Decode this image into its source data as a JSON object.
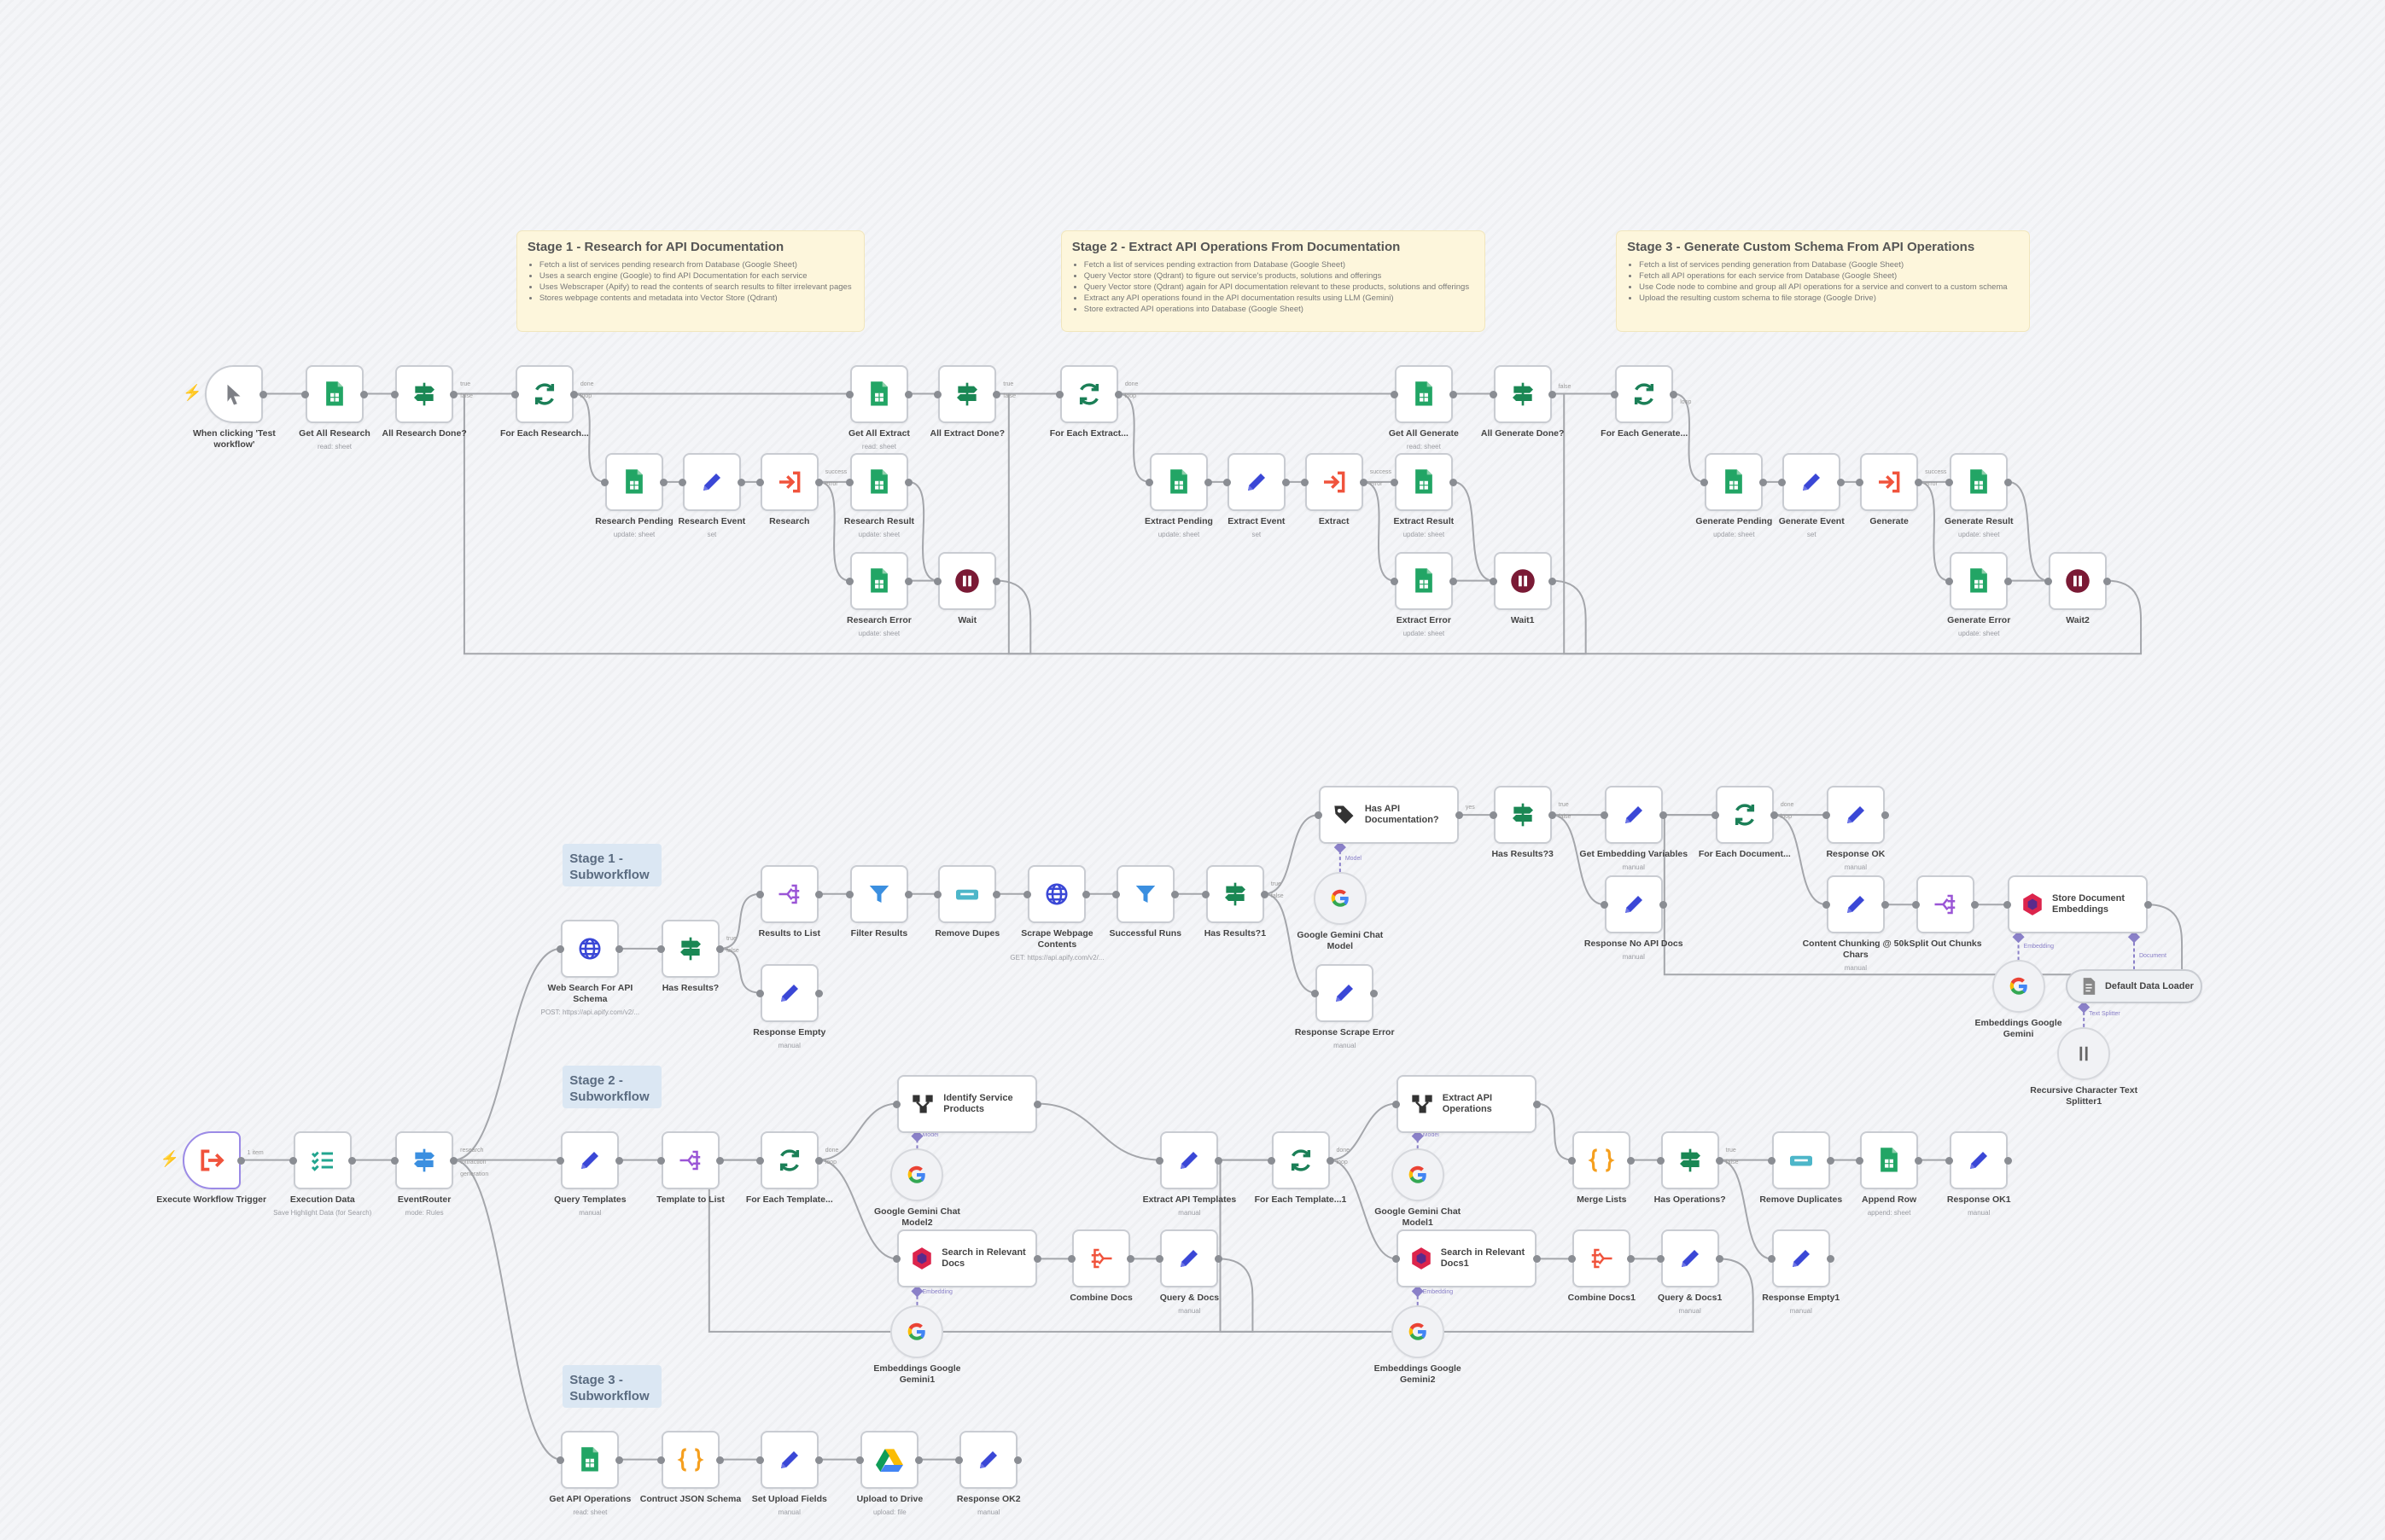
{
  "canvas": {
    "background": "#f4f5f8",
    "accent": "#ff6d5a"
  },
  "sticky_notes": [
    {
      "id": "s1",
      "title": "Stage 1 - Research for API Documentation",
      "bullets": [
        "Fetch a list of services pending research from Database (Google Sheet)",
        "Uses a search engine (Google) to find API Documentation for each service",
        "Uses Webscraper (Apify) to read the contents of search results to filter irrelevant pages",
        "Stores webpage contents and metadata into Vector Store (Qdrant)"
      ]
    },
    {
      "id": "s2",
      "title": "Stage 2 - Extract API Operations From Documentation",
      "bullets": [
        "Fetch a list of services pending extraction from Database (Google Sheet)",
        "Query Vector store (Qdrant) to figure out service's products, solutions and offerings",
        "Query Vector store (Qdrant) again for API documentation relevant to these products, solutions and offerings",
        "Extract any API operations found in the API documentation results using LLM (Gemini)",
        "Store extracted API operations into Database (Google Sheet)"
      ]
    },
    {
      "id": "s3",
      "title": "Stage 3 - Generate Custom Schema From API Operations",
      "bullets": [
        "Fetch a list of services pending generation from Database (Google Sheet)",
        "Fetch all API operations for each service from Database (Google Sheet)",
        "Use Code node to combine and group all API operations for a service and convert to a custom schema",
        "Upload the resulting custom schema to file storage (Google Drive)"
      ]
    }
  ],
  "subworkflow_labels": [
    {
      "id": "b1",
      "text": "Stage 1 - Subworkflow"
    },
    {
      "id": "b2",
      "text": "Stage 2 - Subworkflow"
    },
    {
      "id": "b3",
      "text": "Stage 3 - Subworkflow"
    }
  ],
  "nodes": [
    {
      "id": "t1",
      "label": "When clicking 'Test workflow'",
      "icon": "cursor-icon"
    },
    {
      "id": "gar",
      "label": "Get All Research",
      "subtitle": "read: sheet",
      "icon": "sheet-icon"
    },
    {
      "id": "ard",
      "label": "All Research Done?",
      "icon": "if-icon"
    },
    {
      "id": "fer",
      "label": "For Each Research...",
      "icon": "loop-icon"
    },
    {
      "id": "gae",
      "label": "Get All Extract",
      "subtitle": "read: sheet",
      "icon": "sheet-icon"
    },
    {
      "id": "aed",
      "label": "All Extract Done?",
      "icon": "if-icon"
    },
    {
      "id": "fee",
      "label": "For Each Extract...",
      "icon": "loop-icon"
    },
    {
      "id": "gag",
      "label": "Get All Generate",
      "subtitle": "read: sheet",
      "icon": "sheet-icon"
    },
    {
      "id": "agd",
      "label": "All Generate Done?",
      "icon": "if-icon"
    },
    {
      "id": "feg",
      "label": "For Each Generate...",
      "icon": "loop-icon"
    },
    {
      "id": "rp",
      "label": "Research Pending",
      "subtitle": "update: sheet",
      "icon": "sheet-icon"
    },
    {
      "id": "rev",
      "label": "Research Event",
      "subtitle": "set",
      "icon": "pencil-icon"
    },
    {
      "id": "r",
      "label": "Research",
      "icon": "execute-workflow-icon"
    },
    {
      "id": "rr",
      "label": "Research Result",
      "subtitle": "update: sheet",
      "icon": "sheet-icon"
    },
    {
      "id": "rer",
      "label": "Research Error",
      "subtitle": "update: sheet",
      "icon": "sheet-icon"
    },
    {
      "id": "w",
      "label": "Wait",
      "icon": "pause-icon"
    },
    {
      "id": "ep",
      "label": "Extract Pending",
      "subtitle": "update: sheet",
      "icon": "sheet-icon"
    },
    {
      "id": "eev",
      "label": "Extract Event",
      "subtitle": "set",
      "icon": "pencil-icon"
    },
    {
      "id": "e",
      "label": "Extract",
      "icon": "execute-workflow-icon"
    },
    {
      "id": "er2",
      "label": "Extract Result",
      "subtitle": "update: sheet",
      "icon": "sheet-icon"
    },
    {
      "id": "eer",
      "label": "Extract Error",
      "subtitle": "update: sheet",
      "icon": "sheet-icon"
    },
    {
      "id": "w1",
      "label": "Wait1",
      "icon": "pause-icon"
    },
    {
      "id": "gp",
      "label": "Generate Pending",
      "subtitle": "update: sheet",
      "icon": "sheet-icon"
    },
    {
      "id": "gev2",
      "label": "Generate Event",
      "subtitle": "set",
      "icon": "pencil-icon"
    },
    {
      "id": "g",
      "label": "Generate",
      "icon": "execute-workflow-icon"
    },
    {
      "id": "gr",
      "label": "Generate Result",
      "subtitle": "update: sheet",
      "icon": "sheet-icon"
    },
    {
      "id": "ger",
      "label": "Generate Error",
      "subtitle": "update: sheet",
      "icon": "sheet-icon"
    },
    {
      "id": "w2",
      "label": "Wait2",
      "icon": "pause-icon"
    },
    {
      "id": "ewt",
      "label": "Execute Workflow Trigger",
      "icon": "execute-trigger-icon"
    },
    {
      "id": "ed",
      "label": "Execution Data",
      "subtitle": "Save Highlight Data (for Search)",
      "icon": "checklist-icon"
    },
    {
      "id": "evr",
      "label": "EventRouter",
      "subtitle": "mode: Rules",
      "icon": "switch-icon"
    },
    {
      "id": "ws",
      "label": "Web Search For API Schema",
      "subtitle": "POST: https://api.apify.com/v2/...",
      "icon": "globe-icon"
    },
    {
      "id": "hr",
      "label": "Has Results?",
      "icon": "if-icon"
    },
    {
      "id": "rtl",
      "label": "Results to List",
      "icon": "split-out-icon"
    },
    {
      "id": "rempty",
      "label": "Response Empty",
      "subtitle": "manual",
      "icon": "pencil-icon"
    },
    {
      "id": "fr",
      "label": "Filter Results",
      "icon": "filter-icon"
    },
    {
      "id": "rd",
      "label": "Remove Dupes",
      "icon": "dedupe-icon"
    },
    {
      "id": "swc",
      "label": "Scrape Webpage Contents",
      "subtitle": "GET: https://api.apify.com/v2/...",
      "icon": "globe-icon"
    },
    {
      "id": "sr",
      "label": "Successful Runs",
      "icon": "filter-icon"
    },
    {
      "id": "hr1",
      "label": "Has Results?1",
      "icon": "if-icon"
    },
    {
      "id": "had",
      "label": "Has API Documentation?",
      "icon": "tag-icon"
    },
    {
      "id": "gcm",
      "label": "Google Gemini Chat Model",
      "icon": "gemini-icon"
    },
    {
      "id": "rse",
      "label": "Response Scrape Error",
      "subtitle": "manual",
      "icon": "pencil-icon"
    },
    {
      "id": "hr3",
      "label": "Has Results?3",
      "icon": "if-icon"
    },
    {
      "id": "gevar",
      "label": "Get Embedding Variables",
      "subtitle": "manual",
      "icon": "pencil-icon"
    },
    {
      "id": "rnad",
      "label": "Response No API Docs",
      "subtitle": "manual",
      "icon": "pencil-icon"
    },
    {
      "id": "fed",
      "label": "For Each Document...",
      "icon": "loop-icon"
    },
    {
      "id": "rok",
      "label": "Response OK",
      "subtitle": "manual",
      "icon": "pencil-icon"
    },
    {
      "id": "cc",
      "label": "Content Chunking @ 50k Chars",
      "subtitle": "manual",
      "icon": "pencil-icon"
    },
    {
      "id": "soc",
      "label": "Split Out Chunks",
      "icon": "split-out-icon"
    },
    {
      "id": "sde",
      "label": "Store Document Embeddings",
      "icon": "qdrant-icon"
    },
    {
      "id": "egg",
      "label": "Embeddings Google Gemini",
      "icon": "gemini-icon"
    },
    {
      "id": "ddl",
      "label": "Default Data Loader",
      "icon": "document-icon"
    },
    {
      "id": "rcts",
      "label": "Recursive Character Text Splitter1",
      "icon": "splitter-icon"
    },
    {
      "id": "qt",
      "label": "Query Templates",
      "subtitle": "manual",
      "icon": "pencil-icon"
    },
    {
      "id": "ttl",
      "label": "Template to List",
      "icon": "split-out-icon"
    },
    {
      "id": "fet",
      "label": "For Each Template...",
      "icon": "loop-icon"
    },
    {
      "id": "isp",
      "label": "Identify Service Products",
      "icon": "chain-icon"
    },
    {
      "id": "gcm2",
      "label": "Google Gemini Chat Model2",
      "icon": "gemini-icon"
    },
    {
      "id": "srd",
      "label": "Search in Relevant Docs",
      "icon": "qdrant-icon"
    },
    {
      "id": "egg1",
      "label": "Embeddings Google Gemini1",
      "icon": "gemini-icon"
    },
    {
      "id": "cd",
      "label": "Combine Docs",
      "icon": "aggregate-icon"
    },
    {
      "id": "qd",
      "label": "Query & Docs",
      "subtitle": "manual",
      "icon": "pencil-icon"
    },
    {
      "id": "eat",
      "label": "Extract API Templates",
      "subtitle": "manual",
      "icon": "pencil-icon"
    },
    {
      "id": "fet1",
      "label": "For Each Template...1",
      "icon": "loop-icon"
    },
    {
      "id": "eao",
      "label": "Extract API Operations",
      "icon": "chain-icon"
    },
    {
      "id": "gcm1",
      "label": "Google Gemini Chat Model1",
      "icon": "gemini-icon"
    },
    {
      "id": "srd1",
      "label": "Search in Relevant Docs1",
      "icon": "qdrant-icon"
    },
    {
      "id": "egg2",
      "label": "Embeddings Google Gemini2",
      "icon": "gemini-icon"
    },
    {
      "id": "cd1",
      "label": "Combine Docs1",
      "icon": "aggregate-icon"
    },
    {
      "id": "qd1",
      "label": "Query & Docs1",
      "subtitle": "manual",
      "icon": "pencil-icon"
    },
    {
      "id": "ml",
      "label": "Merge Lists",
      "icon": "code-icon"
    },
    {
      "id": "ho",
      "label": "Has Operations?",
      "icon": "if-icon"
    },
    {
      "id": "rdup",
      "label": "Remove Duplicates",
      "icon": "dedupe-icon"
    },
    {
      "id": "ar",
      "label": "Append Row",
      "subtitle": "append: sheet",
      "icon": "sheet-icon"
    },
    {
      "id": "rok1",
      "label": "Response OK1",
      "subtitle": "manual",
      "icon": "pencil-icon"
    },
    {
      "id": "rempty1",
      "label": "Response Empty1",
      "subtitle": "manual",
      "icon": "pencil-icon"
    },
    {
      "id": "gapi",
      "label": "Get API Operations",
      "subtitle": "read: sheet",
      "icon": "sheet-icon"
    },
    {
      "id": "cjs",
      "label": "Contruct JSON Schema",
      "icon": "code-icon"
    },
    {
      "id": "suf",
      "label": "Set Upload Fields",
      "subtitle": "manual",
      "icon": "pencil-icon"
    },
    {
      "id": "utd",
      "label": "Upload to Drive",
      "subtitle": "upload: file",
      "icon": "drive-icon"
    },
    {
      "id": "rok2",
      "label": "Response OK2",
      "subtitle": "manual",
      "icon": "pencil-icon"
    }
  ],
  "edges": [
    {
      "from": "t1",
      "to": "gar"
    },
    {
      "from": "gar",
      "to": "ard"
    },
    {
      "from": "ard",
      "to": "gae",
      "label": "true"
    },
    {
      "from": "ard",
      "to": "fer",
      "label": "false"
    },
    {
      "from": "fer",
      "to": "gae",
      "label": "done"
    },
    {
      "from": "fer",
      "to": "rp",
      "label": "loop"
    },
    {
      "from": "rp",
      "to": "rev"
    },
    {
      "from": "rev",
      "to": "r"
    },
    {
      "from": "r",
      "to": "rr",
      "label": "success"
    },
    {
      "from": "r",
      "to": "rer",
      "label": "error"
    },
    {
      "from": "rr",
      "to": "w"
    },
    {
      "from": "rer",
      "to": "w"
    },
    {
      "from": "w",
      "to": "fer",
      "kind": "back"
    },
    {
      "from": "gae",
      "to": "aed"
    },
    {
      "from": "aed",
      "to": "gag",
      "label": "true"
    },
    {
      "from": "aed",
      "to": "fee",
      "label": "false"
    },
    {
      "from": "fee",
      "to": "gag",
      "label": "done"
    },
    {
      "from": "fee",
      "to": "ep",
      "label": "loop"
    },
    {
      "from": "ep",
      "to": "eev"
    },
    {
      "from": "eev",
      "to": "e"
    },
    {
      "from": "e",
      "to": "er2",
      "label": "success"
    },
    {
      "from": "e",
      "to": "eer",
      "label": "error"
    },
    {
      "from": "er2",
      "to": "w1"
    },
    {
      "from": "eer",
      "to": "w1"
    },
    {
      "from": "w1",
      "to": "fee",
      "kind": "back"
    },
    {
      "from": "gag",
      "to": "agd"
    },
    {
      "from": "agd",
      "to": "feg",
      "label": "false"
    },
    {
      "from": "feg",
      "to": "gp",
      "label": "loop"
    },
    {
      "from": "gp",
      "to": "gev2"
    },
    {
      "from": "gev2",
      "to": "g"
    },
    {
      "from": "g",
      "to": "gr",
      "label": "success"
    },
    {
      "from": "g",
      "to": "ger",
      "label": "error"
    },
    {
      "from": "gr",
      "to": "w2"
    },
    {
      "from": "ger",
      "to": "w2"
    },
    {
      "from": "w2",
      "to": "feg",
      "kind": "back"
    },
    {
      "from": "ewt",
      "to": "ed",
      "label": "1 item"
    },
    {
      "from": "ed",
      "to": "evr"
    },
    {
      "from": "evr",
      "to": "ws",
      "label": "research"
    },
    {
      "from": "evr",
      "to": "qt",
      "label": "extraction"
    },
    {
      "from": "evr",
      "to": "gapi",
      "label": "generation"
    },
    {
      "from": "ws",
      "to": "hr"
    },
    {
      "from": "hr",
      "to": "rtl",
      "label": "true"
    },
    {
      "from": "hr",
      "to": "rempty",
      "label": "false"
    },
    {
      "from": "rtl",
      "to": "fr"
    },
    {
      "from": "fr",
      "to": "rd"
    },
    {
      "from": "rd",
      "to": "swc"
    },
    {
      "from": "swc",
      "to": "sr"
    },
    {
      "from": "sr",
      "to": "hr1"
    },
    {
      "from": "hr1",
      "to": "had",
      "label": "true"
    },
    {
      "from": "hr1",
      "to": "rse",
      "label": "false"
    },
    {
      "from": "had",
      "to": "hr3",
      "label": "yes"
    },
    {
      "from": "hr3",
      "to": "gevar",
      "label": "true"
    },
    {
      "from": "hr3",
      "to": "rnad",
      "label": "false"
    },
    {
      "from": "gevar",
      "to": "fed"
    },
    {
      "from": "fed",
      "to": "rok",
      "label": "done"
    },
    {
      "from": "fed",
      "to": "cc",
      "label": "loop"
    },
    {
      "from": "cc",
      "to": "soc"
    },
    {
      "from": "soc",
      "to": "sde"
    },
    {
      "from": "sde",
      "to": "fed",
      "kind": "back"
    },
    {
      "from": "gcm",
      "to": "had",
      "kind": "sub",
      "label": "Model"
    },
    {
      "from": "egg",
      "to": "sde",
      "kind": "sub",
      "label": "Embedding"
    },
    {
      "from": "ddl",
      "to": "sde",
      "kind": "sub",
      "label": "Document"
    },
    {
      "from": "rcts",
      "to": "ddl",
      "kind": "sub",
      "label": "Text Splitter"
    },
    {
      "from": "qt",
      "to": "ttl"
    },
    {
      "from": "ttl",
      "to": "fet"
    },
    {
      "from": "fet",
      "to": "isp",
      "label": "done"
    },
    {
      "from": "fet",
      "to": "srd",
      "label": "loop"
    },
    {
      "from": "isp",
      "to": "eat"
    },
    {
      "from": "srd",
      "to": "cd"
    },
    {
      "from": "cd",
      "to": "qd"
    },
    {
      "from": "qd",
      "to": "fet",
      "kind": "back"
    },
    {
      "from": "gcm2",
      "to": "isp",
      "kind": "sub",
      "label": "Model"
    },
    {
      "from": "egg1",
      "to": "srd",
      "kind": "sub",
      "label": "Embedding"
    },
    {
      "from": "eat",
      "to": "fet1"
    },
    {
      "from": "fet1",
      "to": "eao",
      "label": "done"
    },
    {
      "from": "fet1",
      "to": "srd1",
      "label": "loop"
    },
    {
      "from": "srd1",
      "to": "cd1"
    },
    {
      "from": "cd1",
      "to": "qd1"
    },
    {
      "from": "qd1",
      "to": "fet1",
      "kind": "back"
    },
    {
      "from": "gcm1",
      "to": "eao",
      "kind": "sub",
      "label": "Model"
    },
    {
      "from": "egg2",
      "to": "srd1",
      "kind": "sub",
      "label": "Embedding"
    },
    {
      "from": "eao",
      "to": "ml"
    },
    {
      "from": "ml",
      "to": "ho"
    },
    {
      "from": "ho",
      "to": "rdup",
      "label": "true"
    },
    {
      "from": "ho",
      "to": "rempty1",
      "label": "false"
    },
    {
      "from": "rdup",
      "to": "ar"
    },
    {
      "from": "ar",
      "to": "rok1"
    },
    {
      "from": "gapi",
      "to": "cjs"
    },
    {
      "from": "cjs",
      "to": "suf"
    },
    {
      "from": "suf",
      "to": "utd"
    },
    {
      "from": "utd",
      "to": "rok2"
    }
  ]
}
